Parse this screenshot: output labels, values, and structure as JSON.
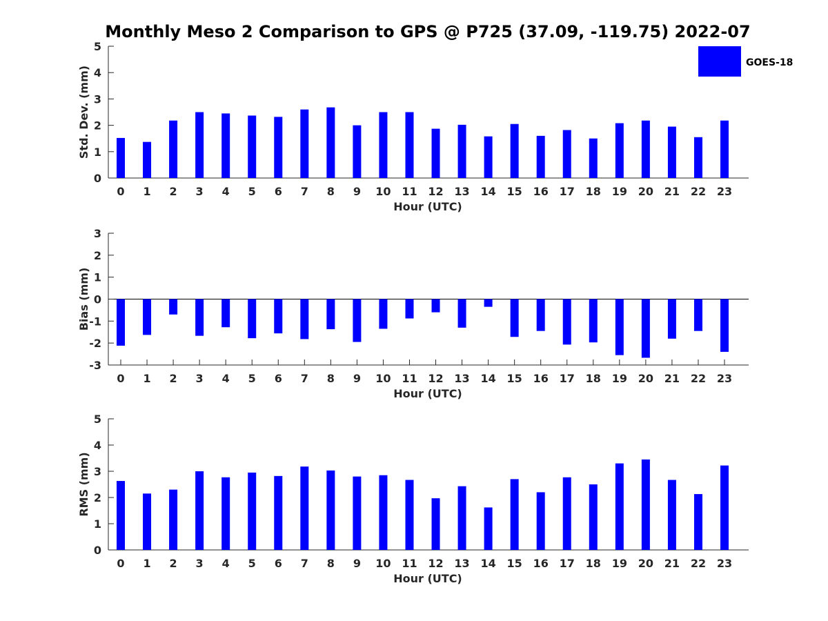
{
  "figure": {
    "title": "Monthly Meso 2 Comparison to GPS @ P725 (37.09, -119.75) 2022-07",
    "legend": {
      "label": "GOES-18",
      "color": "#0000ff",
      "placement": "top-right"
    },
    "bar_color": "#0000ff"
  },
  "chart_data": [
    {
      "type": "bar",
      "xlabel": "Hour (UTC)",
      "ylabel": "Std. Dev. (mm)",
      "ylim": [
        0,
        5
      ],
      "yticks": [
        0,
        1,
        2,
        3,
        4,
        5
      ],
      "categories": [
        "0",
        "1",
        "2",
        "3",
        "4",
        "5",
        "6",
        "7",
        "8",
        "9",
        "10",
        "11",
        "12",
        "13",
        "14",
        "15",
        "16",
        "17",
        "18",
        "19",
        "20",
        "21",
        "22",
        "23"
      ],
      "series": [
        {
          "name": "GOES-18",
          "values": [
            1.52,
            1.37,
            2.18,
            2.5,
            2.45,
            2.37,
            2.32,
            2.6,
            2.68,
            2.0,
            2.5,
            2.5,
            1.87,
            2.02,
            1.58,
            2.05,
            1.6,
            1.82,
            1.5,
            2.08,
            2.18,
            1.95,
            1.55,
            2.18
          ]
        }
      ]
    },
    {
      "type": "bar",
      "xlabel": "Hour (UTC)",
      "ylabel": "Bias (mm)",
      "ylim": [
        -3,
        3
      ],
      "yticks": [
        -3,
        -2,
        -1,
        0,
        1,
        2,
        3
      ],
      "categories": [
        "0",
        "1",
        "2",
        "3",
        "4",
        "5",
        "6",
        "7",
        "8",
        "9",
        "10",
        "11",
        "12",
        "13",
        "14",
        "15",
        "16",
        "17",
        "18",
        "19",
        "20",
        "21",
        "22",
        "23"
      ],
      "series": [
        {
          "name": "GOES-18",
          "values": [
            -2.12,
            -1.63,
            -0.7,
            -1.67,
            -1.28,
            -1.78,
            -1.56,
            -1.82,
            -1.37,
            -1.95,
            -1.35,
            -0.88,
            -0.6,
            -1.3,
            -0.35,
            -1.72,
            -1.45,
            -2.07,
            -1.97,
            -2.55,
            -2.67,
            -1.8,
            -1.45,
            -2.4
          ]
        }
      ]
    },
    {
      "type": "bar",
      "xlabel": "Hour (UTC)",
      "ylabel": "RMS (mm)",
      "ylim": [
        0,
        5
      ],
      "yticks": [
        0,
        1,
        2,
        3,
        4,
        5
      ],
      "categories": [
        "0",
        "1",
        "2",
        "3",
        "4",
        "5",
        "6",
        "7",
        "8",
        "9",
        "10",
        "11",
        "12",
        "13",
        "14",
        "15",
        "16",
        "17",
        "18",
        "19",
        "20",
        "21",
        "22",
        "23"
      ],
      "series": [
        {
          "name": "GOES-18",
          "values": [
            2.63,
            2.15,
            2.3,
            3.0,
            2.77,
            2.95,
            2.82,
            3.18,
            3.03,
            2.8,
            2.85,
            2.67,
            1.97,
            2.43,
            1.62,
            2.7,
            2.2,
            2.77,
            2.5,
            3.3,
            3.45,
            2.67,
            2.13,
            3.22
          ]
        }
      ]
    }
  ]
}
